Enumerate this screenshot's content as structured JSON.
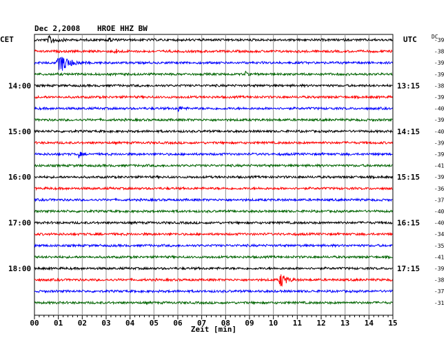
{
  "header": {
    "date": "Dec 2,2008",
    "station": "HROE HHZ BW",
    "left_zone": "CET",
    "right_zone": "UTC",
    "dc_label": "DC"
  },
  "colors": {
    "trace_cycle": [
      "#000000",
      "#ff0000",
      "#0000ff",
      "#006400"
    ],
    "grid": "#909090",
    "text": "#000000"
  },
  "chart_data": {
    "type": "line",
    "title": "Dec 2,2008   HROE HHZ BW",
    "xlabel": "Zeit [min]",
    "ylabel": "",
    "x_range": [
      0,
      15
    ],
    "x_ticks": [
      "00",
      "01",
      "02",
      "03",
      "04",
      "05",
      "06",
      "07",
      "08",
      "09",
      "10",
      "11",
      "12",
      "13",
      "14",
      "15"
    ],
    "num_traces": 24,
    "trace_minutes": 15,
    "left_hour_labels": [
      {
        "trace": 4,
        "label": "14:00"
      },
      {
        "trace": 8,
        "label": "15:00"
      },
      {
        "trace": 12,
        "label": "16:00"
      },
      {
        "trace": 16,
        "label": "17:00"
      },
      {
        "trace": 20,
        "label": "18:00"
      }
    ],
    "right_hour_labels": [
      {
        "trace": 4,
        "label": "13:15"
      },
      {
        "trace": 8,
        "label": "14:15"
      },
      {
        "trace": 12,
        "label": "15:15"
      },
      {
        "trace": 16,
        "label": "16:15"
      },
      {
        "trace": 20,
        "label": "17:15"
      }
    ],
    "dc_offsets": [
      "-39",
      "-38",
      "-39",
      "-39",
      "-38",
      "-39",
      "-40",
      "-39",
      "-40",
      "-39",
      "-39",
      "-41",
      "-39",
      "-36",
      "-37",
      "-40",
      "-40",
      "-34",
      "-35",
      "-41",
      "-39",
      "-38",
      "-37",
      "-31"
    ],
    "events": [
      {
        "trace": 0,
        "start_min": 0.5,
        "end_min": 1.5,
        "amplitude": 6
      },
      {
        "trace": 0,
        "start_min": 3.0,
        "end_min": 3.5,
        "amplitude": 4
      },
      {
        "trace": 1,
        "start_min": 3.3,
        "end_min": 3.9,
        "amplitude": 3
      },
      {
        "trace": 2,
        "start_min": 0.9,
        "end_min": 2.2,
        "amplitude": 13
      },
      {
        "trace": 3,
        "start_min": 8.8,
        "end_min": 9.0,
        "amplitude": 4
      },
      {
        "trace": 6,
        "start_min": 5.9,
        "end_min": 6.4,
        "amplitude": 5
      },
      {
        "trace": 10,
        "start_min": 1.8,
        "end_min": 2.1,
        "amplitude": 6
      },
      {
        "trace": 21,
        "start_min": 10.2,
        "end_min": 11.0,
        "amplitude": 11
      }
    ]
  }
}
